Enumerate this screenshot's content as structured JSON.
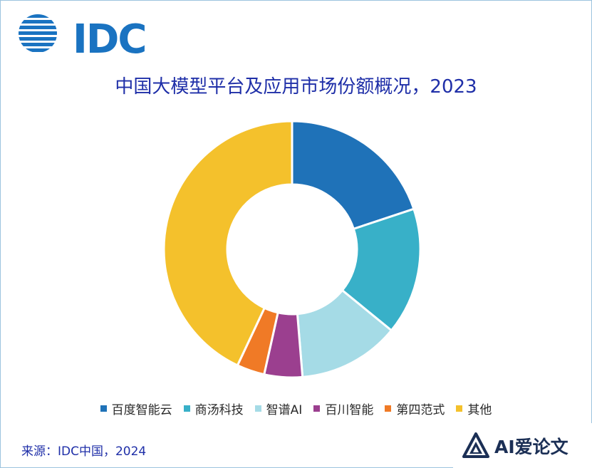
{
  "logo": {
    "text": "IDC",
    "color": "#1a73c1"
  },
  "title": "中国大模型平台及应用市场份额概况，2023",
  "chart_data": {
    "type": "pie",
    "donut": true,
    "title": "中国大模型平台及应用市场份额概况，2023",
    "legend_position": "bottom",
    "categories": [
      "百度智能云",
      "商汤科技",
      "智谱AI",
      "百川智能",
      "第四范式",
      "其他"
    ],
    "values": [
      19.9,
      16.0,
      12.8,
      4.8,
      3.5,
      43.0
    ],
    "unit": "%",
    "colors": [
      "#1f72b8",
      "#38b0c8",
      "#a5dbe6",
      "#9b3f8f",
      "#f07a26",
      "#f4c12c"
    ]
  },
  "source": "来源：IDC中国，2024",
  "watermark": {
    "text": "AI爱论文",
    "icon": "triangle-logo-icon"
  }
}
